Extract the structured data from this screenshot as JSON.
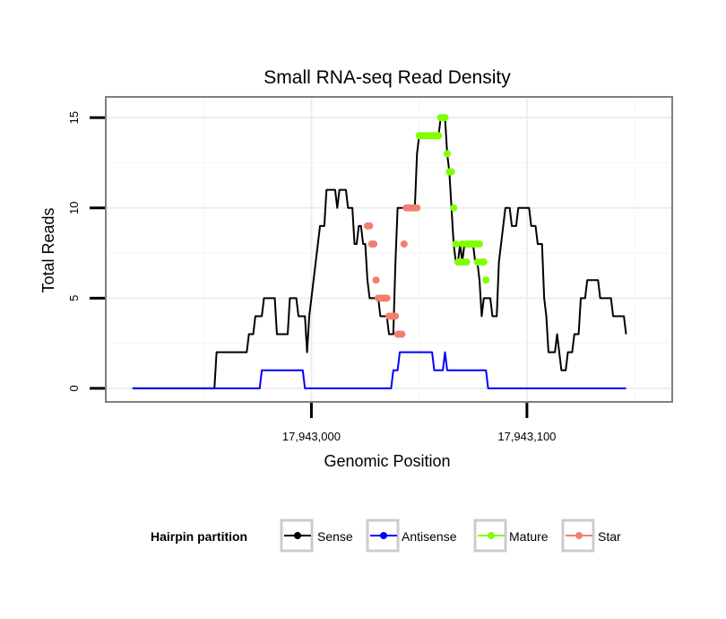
{
  "chart_data": {
    "type": "line",
    "title": "Small RNA-seq Read Density",
    "xlabel": "Genomic Position",
    "ylabel": "Total Reads",
    "xlim": [
      17942905,
      17943167
    ],
    "ylim": [
      -0.7,
      16.1
    ],
    "x_ticks": [
      17943000,
      17943100
    ],
    "x_tick_labels": [
      "17,943,000",
      "17,943,100"
    ],
    "y_ticks": [
      0,
      5,
      10,
      15
    ],
    "y_tick_labels": [
      "0",
      "5",
      "10",
      "15"
    ],
    "grid": true,
    "legend": {
      "title": "Hairpin partition",
      "position": "bottom",
      "entries": [
        "Sense",
        "Antisense",
        "Mature",
        "Star"
      ]
    },
    "series": [
      {
        "name": "Sense",
        "color": "#000000",
        "points": false,
        "points_data": [
          [
            17942917,
            0
          ],
          [
            17942955,
            0
          ],
          [
            17942956,
            2
          ],
          [
            17942970,
            2
          ],
          [
            17942971,
            3
          ],
          [
            17942973,
            3
          ],
          [
            17942974,
            4
          ],
          [
            17942977,
            4
          ],
          [
            17942978,
            5
          ],
          [
            17942983,
            5
          ],
          [
            17942984,
            3
          ],
          [
            17942989,
            3
          ],
          [
            17942990,
            5
          ],
          [
            17942993,
            5
          ],
          [
            17942994,
            4
          ],
          [
            17942997,
            4
          ],
          [
            17942998,
            2
          ],
          [
            17942999,
            4
          ],
          [
            17943000,
            5
          ],
          [
            17943002,
            7
          ],
          [
            17943003,
            8
          ],
          [
            17943004,
            9
          ],
          [
            17943006,
            9
          ],
          [
            17943007,
            11
          ],
          [
            17943011,
            11
          ],
          [
            17943012,
            10
          ],
          [
            17943013,
            11
          ],
          [
            17943016,
            11
          ],
          [
            17943017,
            10
          ],
          [
            17943019,
            10
          ],
          [
            17943020,
            8
          ],
          [
            17943021,
            8
          ],
          [
            17943022,
            9
          ],
          [
            17943023,
            9
          ],
          [
            17943024,
            8
          ],
          [
            17943025,
            8
          ],
          [
            17943026,
            6
          ],
          [
            17943027,
            5
          ],
          [
            17943031,
            5
          ],
          [
            17943032,
            4
          ],
          [
            17943035,
            4
          ],
          [
            17943036,
            3
          ],
          [
            17943038,
            3
          ],
          [
            17943039,
            7
          ],
          [
            17943040,
            10
          ],
          [
            17943048,
            10
          ],
          [
            17943049,
            13
          ],
          [
            17943050,
            14
          ],
          [
            17943059,
            14
          ],
          [
            17943060,
            15
          ],
          [
            17943062,
            15
          ],
          [
            17943063,
            13
          ],
          [
            17943064,
            12
          ],
          [
            17943065,
            10
          ],
          [
            17943066,
            8
          ],
          [
            17943067,
            7
          ],
          [
            17943068,
            7
          ],
          [
            17943069,
            8
          ],
          [
            17943070,
            7
          ],
          [
            17943071,
            8
          ],
          [
            17943075,
            8
          ],
          [
            17943076,
            7
          ],
          [
            17943077,
            7
          ],
          [
            17943078,
            6
          ],
          [
            17943079,
            4
          ],
          [
            17943080,
            5
          ],
          [
            17943083,
            5
          ],
          [
            17943084,
            4
          ],
          [
            17943086,
            4
          ],
          [
            17943087,
            7
          ],
          [
            17943090,
            10
          ],
          [
            17943092,
            10
          ],
          [
            17943093,
            9
          ],
          [
            17943095,
            9
          ],
          [
            17943096,
            10
          ],
          [
            17943101,
            10
          ],
          [
            17943102,
            9
          ],
          [
            17943104,
            9
          ],
          [
            17943105,
            8
          ],
          [
            17943107,
            8
          ],
          [
            17943108,
            5
          ],
          [
            17943109,
            4
          ],
          [
            17943110,
            2
          ],
          [
            17943113,
            2
          ],
          [
            17943114,
            3
          ],
          [
            17943115,
            2
          ],
          [
            17943116,
            1
          ],
          [
            17943118,
            1
          ],
          [
            17943119,
            2
          ],
          [
            17943121,
            2
          ],
          [
            17943122,
            3
          ],
          [
            17943124,
            3
          ],
          [
            17943125,
            5
          ],
          [
            17943127,
            5
          ],
          [
            17943128,
            6
          ],
          [
            17943133,
            6
          ],
          [
            17943134,
            5
          ],
          [
            17943139,
            5
          ],
          [
            17943140,
            4
          ],
          [
            17943145,
            4
          ],
          [
            17943146,
            3
          ]
        ]
      },
      {
        "name": "Antisense",
        "color": "#0000ff",
        "points": false,
        "points_data": [
          [
            17942917,
            0
          ],
          [
            17942976,
            0
          ],
          [
            17942977,
            1
          ],
          [
            17942996,
            1
          ],
          [
            17942997,
            0
          ],
          [
            17943037,
            0
          ],
          [
            17943038,
            1
          ],
          [
            17943040,
            1
          ],
          [
            17943041,
            2
          ],
          [
            17943056,
            2
          ],
          [
            17943057,
            1
          ],
          [
            17943061,
            1
          ],
          [
            17943062,
            2
          ],
          [
            17943063,
            1
          ],
          [
            17943081,
            1
          ],
          [
            17943082,
            0
          ],
          [
            17943146,
            0
          ]
        ]
      },
      {
        "name": "Mature",
        "color": "#7fff00",
        "points": true,
        "points_data": [
          [
            17943050,
            14
          ],
          [
            17943051,
            14
          ],
          [
            17943052,
            14
          ],
          [
            17943053,
            14
          ],
          [
            17943054,
            14
          ],
          [
            17943055,
            14
          ],
          [
            17943056,
            14
          ],
          [
            17943057,
            14
          ],
          [
            17943058,
            14
          ],
          [
            17943059,
            14
          ],
          [
            17943060,
            15
          ],
          [
            17943061,
            15
          ],
          [
            17943062,
            15
          ],
          [
            17943063,
            13
          ],
          [
            17943064,
            12
          ],
          [
            17943065,
            12
          ],
          [
            17943066,
            10
          ],
          [
            17943067,
            8
          ],
          [
            17943068,
            7
          ],
          [
            17943069,
            7
          ],
          [
            17943070,
            8
          ],
          [
            17943070,
            7
          ],
          [
            17943071,
            7
          ],
          [
            17943072,
            7
          ],
          [
            17943072,
            8
          ],
          [
            17943073,
            8
          ],
          [
            17943074,
            8
          ],
          [
            17943075,
            8
          ],
          [
            17943076,
            8
          ],
          [
            17943077,
            8
          ],
          [
            17943077,
            7
          ],
          [
            17943078,
            8
          ],
          [
            17943079,
            7
          ],
          [
            17943080,
            7
          ],
          [
            17943081,
            6
          ]
        ]
      },
      {
        "name": "Star",
        "color": "#f08070",
        "points": true,
        "points_data": [
          [
            17943026,
            9
          ],
          [
            17943027,
            9
          ],
          [
            17943028,
            8
          ],
          [
            17943029,
            8
          ],
          [
            17943030,
            6
          ],
          [
            17943031,
            5
          ],
          [
            17943032,
            5
          ],
          [
            17943033,
            5
          ],
          [
            17943034,
            5
          ],
          [
            17943035,
            5
          ],
          [
            17943036,
            4
          ],
          [
            17943037,
            4
          ],
          [
            17943038,
            4
          ],
          [
            17943039,
            4
          ],
          [
            17943040,
            3
          ],
          [
            17943041,
            3
          ],
          [
            17943042,
            3
          ],
          [
            17943043,
            8
          ],
          [
            17943044,
            10
          ],
          [
            17943045,
            10
          ],
          [
            17943046,
            10
          ],
          [
            17943047,
            10
          ],
          [
            17943048,
            10
          ],
          [
            17943049,
            10
          ]
        ]
      }
    ]
  }
}
